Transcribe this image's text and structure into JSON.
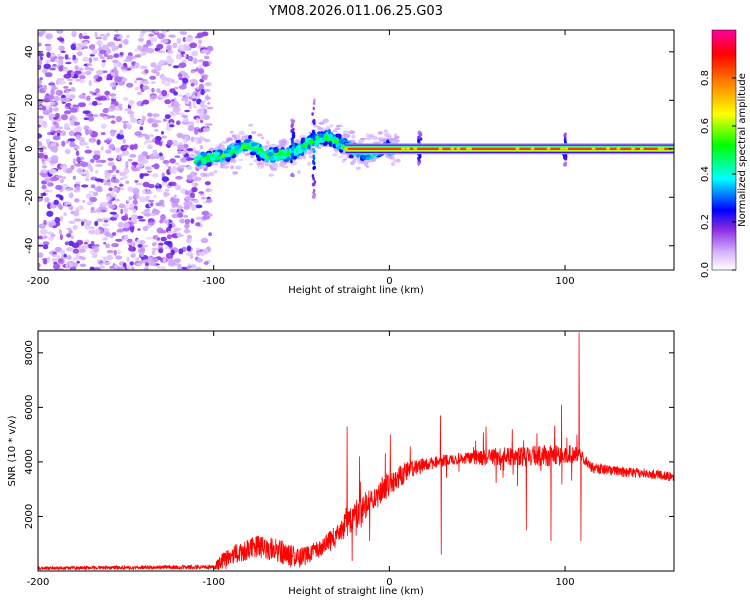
{
  "chart_data": [
    {
      "type": "heatmap",
      "title": "YM08.2026.011.06.25.G03",
      "xlabel": "Height of straight line (km)",
      "ylabel": "Frequency (Hz)",
      "xlim": [
        -200,
        162
      ],
      "ylim": [
        -50,
        49
      ],
      "xticks": [
        -200,
        -100,
        0,
        100
      ],
      "yticks": [
        -40,
        -20,
        0,
        20,
        40
      ],
      "colorbar": {
        "label": "Normalized spectral amplitude",
        "range": [
          0,
          1
        ],
        "ticks": [
          "0.0",
          "0.2",
          "0.4",
          "0.6",
          "0.8"
        ],
        "colormap": [
          "#ffffff",
          "#d8b8ff",
          "#8a2be2",
          "#0000ff",
          "#00ffff",
          "#00ff00",
          "#ffff00",
          "#ff8000",
          "#ff0000",
          "#ff00a0"
        ]
      },
      "features": {
        "noise_region_x": [
          -200,
          -100
        ],
        "noise_level": 0.2,
        "carrier_start_x": -25,
        "carrier_frequency": 0,
        "carrier_level": 0.85,
        "drift_path": [
          [
            -110,
            -5
          ],
          [
            -95,
            -3
          ],
          [
            -80,
            2
          ],
          [
            -70,
            -3
          ],
          [
            -55,
            -2
          ],
          [
            -45,
            3
          ],
          [
            -35,
            5
          ],
          [
            -25,
            1
          ],
          [
            -15,
            -2
          ],
          [
            0,
            0
          ]
        ],
        "spikes_x": [
          -55,
          -43,
          17,
          100
        ]
      }
    },
    {
      "type": "line",
      "xlabel": "Height of straight line (km)",
      "ylabel": "SNR (10 * v/v)",
      "xlim": [
        -200,
        162
      ],
      "ylim": [
        0,
        8800
      ],
      "xticks": [
        -200,
        -100,
        0,
        100
      ],
      "yticks": [
        2000,
        4000,
        6000,
        8000
      ],
      "color": "#ff0000",
      "baseline": [
        [
          -200,
          100
        ],
        [
          -100,
          150
        ],
        [
          -93,
          400
        ],
        [
          -85,
          700
        ],
        [
          -75,
          900
        ],
        [
          -65,
          800
        ],
        [
          -58,
          600
        ],
        [
          -50,
          500
        ],
        [
          -40,
          800
        ],
        [
          -30,
          1300
        ],
        [
          -20,
          2000
        ],
        [
          -10,
          2600
        ],
        [
          0,
          3200
        ],
        [
          10,
          3650
        ],
        [
          20,
          3900
        ],
        [
          30,
          4050
        ],
        [
          45,
          4150
        ],
        [
          60,
          4200
        ],
        [
          80,
          4200
        ],
        [
          100,
          4250
        ],
        [
          108,
          4300
        ],
        [
          115,
          3800
        ],
        [
          130,
          3650
        ],
        [
          150,
          3550
        ],
        [
          162,
          3450
        ]
      ],
      "noise_amplitude": [
        [
          -200,
          60
        ],
        [
          -100,
          80
        ],
        [
          -95,
          350
        ],
        [
          -60,
          450
        ],
        [
          -40,
          300
        ],
        [
          -20,
          550
        ],
        [
          0,
          450
        ],
        [
          20,
          250
        ],
        [
          40,
          200
        ],
        [
          60,
          350
        ],
        [
          100,
          400
        ],
        [
          110,
          200
        ],
        [
          162,
          180
        ]
      ],
      "spikes": [
        [
          -24,
          5300
        ],
        [
          -17,
          4200
        ],
        [
          0.5,
          5000
        ],
        [
          29,
          5700
        ],
        [
          29.5,
          600
        ],
        [
          55,
          5300
        ],
        [
          70,
          5200
        ],
        [
          78,
          1500
        ],
        [
          92,
          1100
        ],
        [
          98,
          6100
        ],
        [
          108,
          8750
        ],
        [
          109,
          1100
        ]
      ]
    }
  ]
}
